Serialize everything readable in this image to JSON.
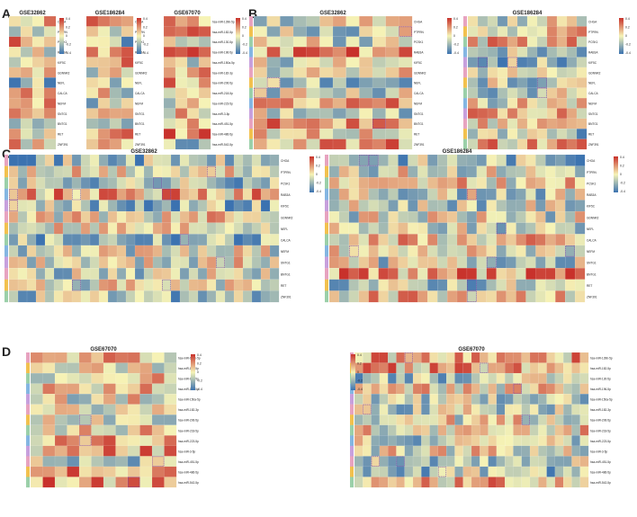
{
  "figure": {
    "panels": [
      {
        "letter": "A",
        "heatmaps": [
          {
            "title": "GSE32862",
            "n_rows": 13,
            "n_cols": 4,
            "labels_key": "genes",
            "seed": 11
          },
          {
            "title": "GSE186284",
            "n_rows": 13,
            "n_cols": 4,
            "labels_key": "genes",
            "seed": 23
          },
          {
            "title": "GSE67070",
            "n_rows": 13,
            "n_cols": 4,
            "labels_key": "mirnas",
            "seed": 37
          }
        ]
      },
      {
        "letter": "B",
        "heatmaps": [
          {
            "title": "GSE32862",
            "n_rows": 13,
            "n_cols": 12,
            "labels_key": "genes",
            "seed": 51
          },
          {
            "title": "GSE186284",
            "n_rows": 13,
            "n_cols": 12,
            "labels_key": "genes",
            "seed": 63
          }
        ]
      },
      {
        "letter": "C",
        "heatmaps": [
          {
            "title": "GSE32862",
            "n_rows": 13,
            "n_cols": 30,
            "labels_key": "genes",
            "seed": 71
          },
          {
            "title": "GSE186284",
            "n_rows": 13,
            "n_cols": 26,
            "labels_key": "genes",
            "seed": 83
          }
        ]
      },
      {
        "letter": "D",
        "heatmaps": [
          {
            "title": "GSE67070",
            "n_rows": 13,
            "n_cols": 12,
            "labels_key": "mirnas",
            "seed": 97
          },
          {
            "title": "GSE67070",
            "n_rows": 13,
            "n_cols": 28,
            "labels_key": "mirnas",
            "seed": 109
          }
        ]
      }
    ],
    "genes": [
      "CHGA",
      "PTPRN",
      "PCSK1",
      "RAB3A",
      "KIF5C",
      "GDNNR2",
      "NEFL",
      "CALCA",
      "NEFM",
      "SNTG1",
      "BNTG1",
      "RET",
      "ZNF391"
    ],
    "mirnas": [
      "hsa-miR-139b-5p",
      "hsa-miR-182-5p",
      "hsa-miR-130-5p",
      "hsa-miR-196-5p",
      "hsa-miR-150a-5p",
      "hsa-miR-182-3p",
      "hsa-miR-206-5p",
      "hsa-miR-218-5p",
      "hsa-miR-223-5p",
      "hsa-miR-3-5p",
      "hsa-miR-451-5p",
      "hsa-miR-486-5p",
      "hsa-miR-542-5p"
    ],
    "colorbar_ticks": [
      "0.4",
      "0.2",
      "0",
      "-0.2",
      "-0.4"
    ],
    "colors": {
      "low": "#3b72b0",
      "mid": "#f6f3b6",
      "high": "#c8312b",
      "highlight_box": "#7b3fa0",
      "cell_text": "#333333"
    }
  }
}
